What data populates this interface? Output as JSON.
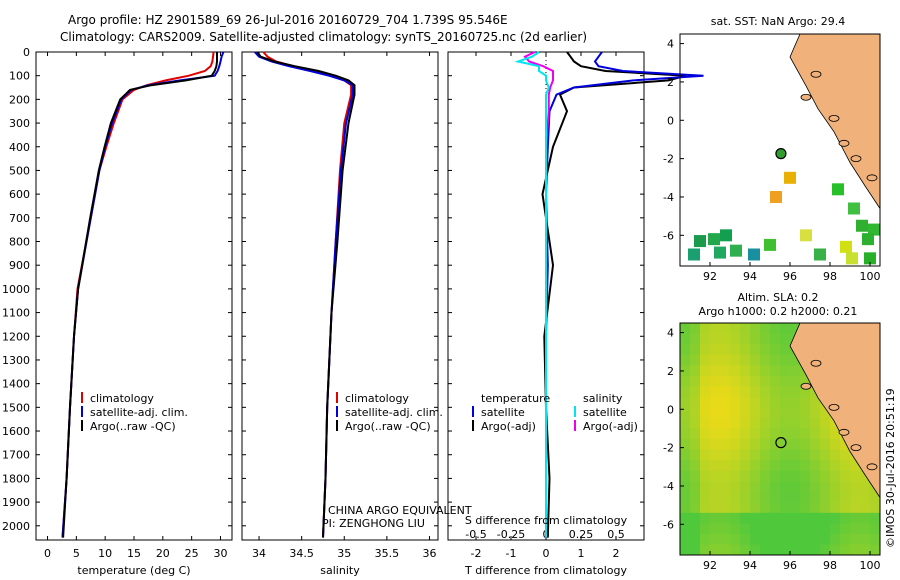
{
  "header": {
    "line1": "Argo profile: HZ 2901589_69 26-Jul-2016 20160729_704 1.739S 95.546E",
    "line2": "Climatology: CARS2009. Satellite-adjusted climatology: synTS_20160725.nc (2d earlier)"
  },
  "colors": {
    "clim": "#e00000",
    "sat": "#0000dd",
    "argo": "#000000",
    "sat_s": "#00e5ee",
    "argo_s": "#ee00ee",
    "land": "#f0b27a"
  },
  "depth_axis": {
    "ticks": [
      0,
      100,
      200,
      300,
      400,
      500,
      600,
      700,
      800,
      900,
      1000,
      1100,
      1200,
      1300,
      1400,
      1500,
      1600,
      1700,
      1800,
      1900,
      2000
    ],
    "max": 2060
  },
  "temperature_panel": {
    "xlabel": "temperature (deg C)",
    "xticks": [
      0,
      5,
      10,
      15,
      20,
      25,
      30
    ],
    "xlim": [
      -2,
      32
    ],
    "legend": [
      "climatology",
      "satellite-adj. clim.",
      "Argo(..raw -QC)"
    ]
  },
  "salinity_panel": {
    "xlabel": "salinity",
    "xticks": [
      "34",
      "34.5",
      "35",
      "35.5",
      "36"
    ],
    "xlim": [
      33.8,
      36.1
    ],
    "legend": [
      "climatology",
      "satellite-adj. clim.",
      "Argo(..raw -QC)"
    ],
    "note1": "CHINA ARGO EQUIVALENT",
    "note2": "PI: ZENGHONG LIU"
  },
  "diff_panel": {
    "xlabel": "T difference from climatology",
    "top_label": "S difference from climatology",
    "s_ticks": [
      "-0.5",
      "-0.25",
      "0",
      "0.25",
      "0.5"
    ],
    "t_ticks": [
      "-2",
      "-1",
      "0",
      "1",
      "2"
    ],
    "legend_left_title": "temperature",
    "legend_right_title": "salinity",
    "legend_left": [
      "satellite",
      "Argo(-adj)"
    ],
    "legend_right": [
      "satellite",
      "Argo(-adj)"
    ]
  },
  "map_sst": {
    "title": "sat. SST: NaN Argo: 29.4",
    "xticks": [
      "92",
      "94",
      "96",
      "98",
      "100"
    ],
    "yticks": [
      "4",
      "2",
      "0",
      "-2",
      "-4",
      "-6"
    ]
  },
  "map_sla": {
    "title1": "Altim. SLA: 0.2",
    "title2": "Argo h1000: 0.2 h2000: 0.21",
    "xticks": [
      "92",
      "94",
      "96",
      "98",
      "100"
    ],
    "yticks": [
      "4",
      "2",
      "0",
      "-2",
      "-4",
      "-6"
    ]
  },
  "credit": "©IMOS 30-Jul-2016 20:51:19",
  "chart_data": {
    "type": "line",
    "y_axis": "depth (m)",
    "temperature": {
      "depth": [
        0,
        20,
        40,
        60,
        80,
        100,
        120,
        140,
        160,
        200,
        300,
        400,
        500,
        700,
        1000,
        1200,
        1500,
        1800,
        2050
      ],
      "climatology": [
        28.8,
        28.7,
        28.6,
        28.3,
        27.3,
        24.5,
        20.5,
        17.2,
        15.0,
        13.0,
        11.5,
        10.2,
        9.0,
        7.5,
        5.2,
        4.6,
        3.9,
        3.3,
        2.6
      ],
      "satellite": [
        30.5,
        30.2,
        30.0,
        29.8,
        29.5,
        29.0,
        23.0,
        17.5,
        14.5,
        12.8,
        11.2,
        10.0,
        9.0,
        7.5,
        5.3,
        4.6,
        3.9,
        3.3,
        2.6
      ],
      "argo": [
        29.4,
        29.4,
        29.4,
        29.3,
        29.0,
        28.5,
        24.0,
        18.0,
        14.3,
        12.6,
        11.0,
        9.9,
        8.9,
        7.4,
        5.3,
        4.6,
        3.9,
        3.3,
        2.7
      ]
    },
    "salinity": {
      "depth": [
        0,
        20,
        40,
        60,
        80,
        100,
        120,
        140,
        180,
        300,
        500,
        800,
        1100,
        1500,
        1800,
        2050
      ],
      "climatology": [
        34.05,
        34.1,
        34.2,
        34.4,
        34.65,
        34.85,
        35.0,
        35.08,
        35.08,
        35.0,
        34.95,
        34.9,
        34.85,
        34.8,
        34.78,
        34.75
      ],
      "satellite": [
        33.95,
        34.0,
        34.15,
        34.35,
        34.6,
        34.82,
        35.0,
        35.1,
        35.1,
        35.02,
        34.96,
        34.9,
        34.85,
        34.8,
        34.78,
        34.75
      ],
      "argo": [
        33.98,
        34.02,
        34.18,
        34.42,
        34.7,
        34.9,
        35.05,
        35.12,
        35.12,
        35.05,
        34.98,
        34.92,
        34.85,
        34.8,
        34.78,
        34.75
      ]
    },
    "difference": {
      "depth": [
        0,
        20,
        40,
        60,
        80,
        100,
        120,
        150,
        180,
        250,
        400,
        600,
        900,
        1200,
        1500,
        1800,
        2050
      ],
      "T_satellite": [
        1.6,
        1.5,
        1.4,
        1.5,
        2.2,
        4.5,
        2.5,
        0.8,
        0.3,
        0.1,
        0.05,
        0.0,
        0.05,
        0.0,
        0.0,
        0.0,
        0.0
      ],
      "T_argo": [
        0.6,
        0.7,
        0.8,
        1.0,
        1.7,
        4.0,
        3.5,
        0.8,
        0.4,
        0.6,
        0.2,
        -0.1,
        0.2,
        -0.05,
        0.0,
        0.1,
        0.05
      ],
      "S_satellite": [
        -0.05,
        -0.1,
        -0.2,
        -0.05,
        -0.05,
        0.0,
        0.0,
        0.02,
        0.0,
        0.0,
        0.0,
        0.0,
        0.0,
        0.0,
        0.0,
        0.0,
        0.0
      ],
      "S_argo": [
        -0.08,
        -0.15,
        -0.12,
        -0.02,
        0.05,
        0.05,
        0.05,
        0.03,
        0.02,
        0.02,
        0.0,
        0.0,
        0.0,
        0.0,
        0.0,
        0.0,
        0.0
      ]
    }
  }
}
